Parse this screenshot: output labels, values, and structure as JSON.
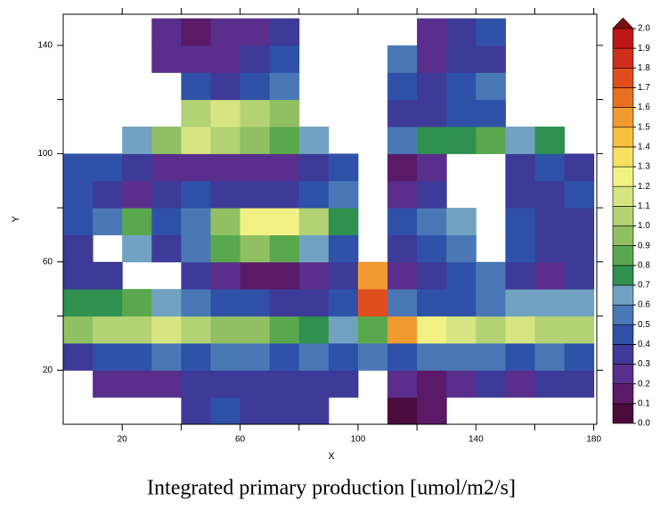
{
  "chart_data": {
    "type": "heatmap",
    "title": "Integrated primary production [umol/m2/s]",
    "xlabel": "X",
    "ylabel": "Y",
    "xlim": [
      0,
      181
    ],
    "ylim": [
      0,
      151.5
    ],
    "xticks": [
      20,
      60,
      100,
      140,
      180
    ],
    "xminorticks": [
      40,
      80,
      120,
      160
    ],
    "yticks": [
      20,
      60,
      100,
      140
    ],
    "yminorticks": [
      40,
      80,
      120
    ],
    "x": [
      5,
      15,
      25,
      35,
      45,
      55,
      65,
      75,
      85,
      95,
      105,
      115,
      125,
      135,
      145,
      155,
      165,
      175
    ],
    "y": [
      5,
      15,
      25,
      35,
      45,
      55,
      65,
      75,
      85,
      95,
      105,
      115,
      125,
      135,
      145
    ],
    "z": [
      [
        null,
        null,
        null,
        null,
        0.3,
        0.4,
        0.3,
        0.3,
        0.3,
        null,
        null,
        0.0,
        0.1,
        null,
        null,
        null,
        null,
        null
      ],
      [
        null,
        0.2,
        0.2,
        0.2,
        0.3,
        0.3,
        0.3,
        0.3,
        0.3,
        0.3,
        null,
        0.2,
        0.1,
        0.2,
        0.3,
        0.2,
        0.3,
        0.3
      ],
      [
        0.3,
        0.4,
        0.4,
        0.5,
        0.4,
        0.5,
        0.5,
        0.4,
        0.5,
        0.4,
        0.5,
        0.4,
        0.5,
        0.5,
        0.5,
        0.4,
        0.5,
        0.4
      ],
      [
        0.9,
        1.0,
        1.0,
        1.1,
        1.0,
        0.9,
        0.9,
        0.8,
        0.7,
        0.6,
        0.8,
        1.5,
        1.2,
        1.1,
        1.0,
        1.1,
        1.0,
        1.0
      ],
      [
        0.7,
        0.7,
        0.8,
        0.6,
        0.5,
        0.4,
        0.4,
        0.3,
        0.3,
        0.4,
        1.7,
        0.5,
        0.4,
        0.4,
        0.5,
        0.6,
        0.6,
        0.6
      ],
      [
        0.3,
        0.3,
        null,
        null,
        0.3,
        0.2,
        0.1,
        0.1,
        0.2,
        0.3,
        1.5,
        0.2,
        0.3,
        0.4,
        0.5,
        0.3,
        0.2,
        0.3
      ],
      [
        0.3,
        null,
        0.6,
        0.3,
        0.5,
        0.8,
        0.9,
        0.8,
        0.6,
        0.4,
        null,
        0.3,
        0.4,
        0.5,
        null,
        0.4,
        0.3,
        0.3
      ],
      [
        0.4,
        0.5,
        0.8,
        0.4,
        0.5,
        0.9,
        1.2,
        1.2,
        1.0,
        0.7,
        null,
        0.4,
        0.5,
        0.6,
        null,
        0.4,
        0.3,
        0.3
      ],
      [
        0.4,
        0.3,
        0.2,
        0.3,
        0.4,
        0.3,
        0.3,
        0.3,
        0.4,
        0.5,
        null,
        0.2,
        0.3,
        null,
        null,
        0.3,
        0.3,
        0.4
      ],
      [
        0.4,
        0.4,
        0.3,
        0.2,
        0.2,
        0.2,
        0.2,
        0.2,
        0.3,
        0.4,
        null,
        0.1,
        0.2,
        null,
        null,
        0.3,
        0.4,
        0.3
      ],
      [
        null,
        null,
        0.6,
        0.9,
        1.1,
        1.0,
        0.9,
        0.8,
        0.6,
        null,
        null,
        0.5,
        0.7,
        0.7,
        0.8,
        0.6,
        0.7,
        null
      ],
      [
        null,
        null,
        null,
        null,
        1.0,
        1.1,
        1.0,
        0.9,
        null,
        null,
        null,
        0.3,
        0.3,
        0.4,
        0.4,
        null,
        null,
        null
      ],
      [
        null,
        null,
        null,
        null,
        0.4,
        0.3,
        0.4,
        0.5,
        null,
        null,
        null,
        0.4,
        0.3,
        0.4,
        0.5,
        null,
        null,
        null
      ],
      [
        null,
        null,
        null,
        0.2,
        0.2,
        0.2,
        0.3,
        0.4,
        null,
        null,
        null,
        0.5,
        0.2,
        0.3,
        0.3,
        null,
        null,
        null
      ],
      [
        null,
        null,
        null,
        0.2,
        0.15,
        0.2,
        0.2,
        0.3,
        null,
        null,
        null,
        null,
        0.2,
        0.3,
        0.4,
        null,
        null,
        null
      ]
    ],
    "colorbar": {
      "ticks": [
        {
          "value": 0,
          "label": "0.0"
        },
        0.1,
        0.2,
        0.3,
        0.4,
        0.5,
        0.6,
        0.7,
        0.8,
        0.9,
        {
          "value": 1,
          "label": "1.0"
        },
        1.1,
        1.2,
        1.3,
        1.4,
        1.5,
        1.6,
        1.7,
        1.8,
        1.9,
        {
          "value": 2,
          "label": "2.0"
        }
      ],
      "colors": [
        "#4a0c3c",
        "#5a1a68",
        "#5a2e8c",
        "#3d3a98",
        "#2f52a8",
        "#4a78b6",
        "#72a2c2",
        "#2f9050",
        "#5aa84e",
        "#90c062",
        "#b2d274",
        "#d6e482",
        "#f2f284",
        "#f8e060",
        "#f8c040",
        "#f09a30",
        "#e87020",
        "#e04e1e",
        "#d02e1c",
        "#be1616"
      ],
      "over_color": "#7a1010"
    }
  }
}
